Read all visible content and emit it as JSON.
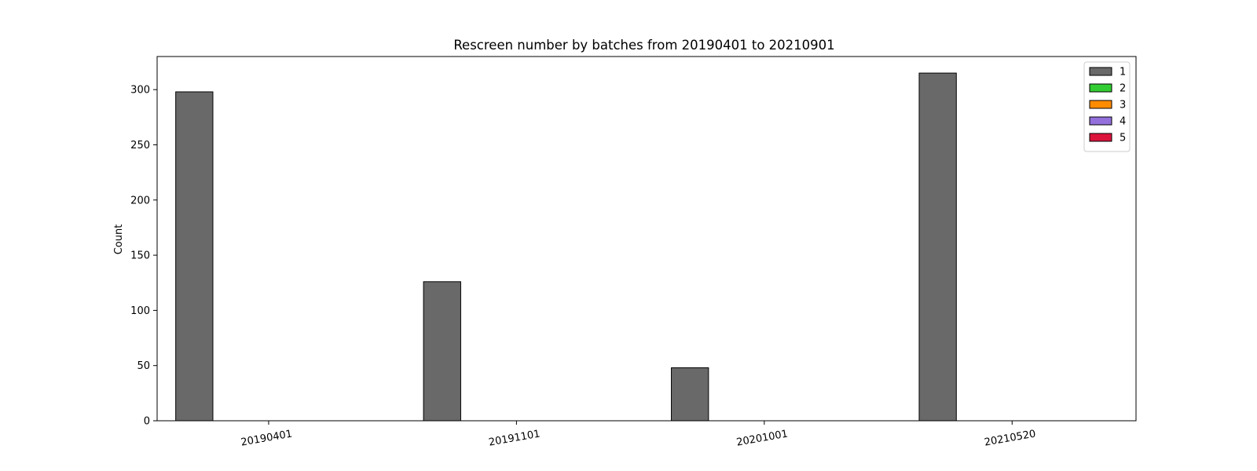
{
  "chart_data": {
    "type": "bar",
    "title": "Rescreen number  by batches from 20190401 to 20210901",
    "xlabel": "",
    "ylabel": "Count",
    "categories": [
      "20190401",
      "20191101",
      "20201001",
      "20210520"
    ],
    "ylim": [
      0,
      330
    ],
    "yticks": [
      0,
      50,
      100,
      150,
      200,
      250,
      300
    ],
    "grid": false,
    "legend_position": "top-right",
    "series": [
      {
        "name": "1",
        "color": "#696969",
        "values": [
          298,
          126,
          48,
          315
        ]
      },
      {
        "name": "2",
        "color": "#32cd32",
        "values": [
          0,
          0,
          0,
          0
        ]
      },
      {
        "name": "3",
        "color": "#ff8c00",
        "values": [
          0,
          0,
          0,
          0
        ]
      },
      {
        "name": "4",
        "color": "#9370db",
        "values": [
          0,
          0,
          0,
          0
        ]
      },
      {
        "name": "5",
        "color": "#dc143c",
        "values": [
          0,
          0,
          0,
          0
        ]
      }
    ]
  }
}
